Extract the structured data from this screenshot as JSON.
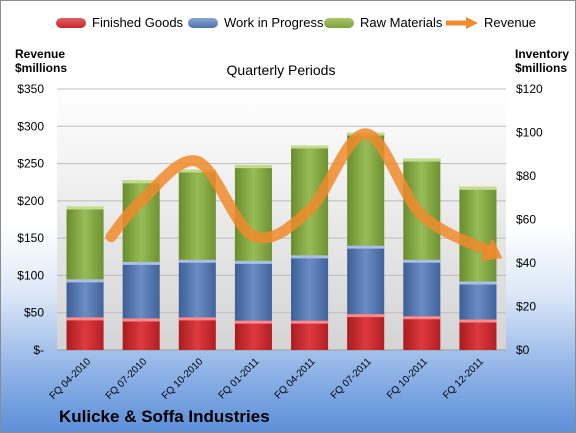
{
  "legend": {
    "finished_goods": "Finished Goods",
    "work_in_progress": "Work in Progress",
    "raw_materials": "Raw Materials",
    "revenue": "Revenue"
  },
  "left_axis_title": [
    "Revenue",
    "$millions"
  ],
  "right_axis_title": [
    "Inventory",
    "$millions"
  ],
  "plot_title": "Quarterly Periods",
  "company": "Kulicke & Soffa Industries",
  "colors": {
    "finished_goods": "#c8262b",
    "work_in_progress": "#4f72aa",
    "raw_materials": "#7ea23c",
    "revenue": "#f08a2c"
  },
  "chart_data": {
    "type": "bar",
    "stacked": true,
    "categories": [
      "FQ 04-2010",
      "FQ 07-2010",
      "FQ 10-2010",
      "FQ 01-2011",
      "FQ 04-2011",
      "FQ 07-2011",
      "FQ 10-2011",
      "FQ 12-2011"
    ],
    "series": [
      {
        "name": "Finished Goods",
        "values": [
          15,
          14.5,
          15,
          13.5,
          13.5,
          16.5,
          15.5,
          14
        ]
      },
      {
        "name": "Work in Progress",
        "values": [
          17.5,
          26,
          26.5,
          27.5,
          30,
          31.5,
          26,
          17.5
        ]
      },
      {
        "name": "Raw Materials",
        "values": [
          33.5,
          37.5,
          41.5,
          44,
          50.5,
          52,
          46.5,
          43.5
        ]
      }
    ],
    "line_series": {
      "name": "Revenue",
      "values": [
        152,
        200,
        253,
        153,
        188,
        290,
        181,
        132
      ]
    },
    "y_left": {
      "label": "Revenue $millions",
      "ylim": [
        0,
        350
      ],
      "ticks": [
        "$-",
        "$50",
        "$100",
        "$150",
        "$200",
        "$250",
        "$300",
        "$350"
      ]
    },
    "y_right": {
      "label": "Inventory $millions",
      "ylim": [
        0,
        120
      ],
      "ticks": [
        "$0",
        "$20",
        "$40",
        "$60",
        "$80",
        "$100",
        "$120"
      ]
    },
    "title": "Quarterly Periods",
    "grid": true,
    "legend_position": "top"
  }
}
